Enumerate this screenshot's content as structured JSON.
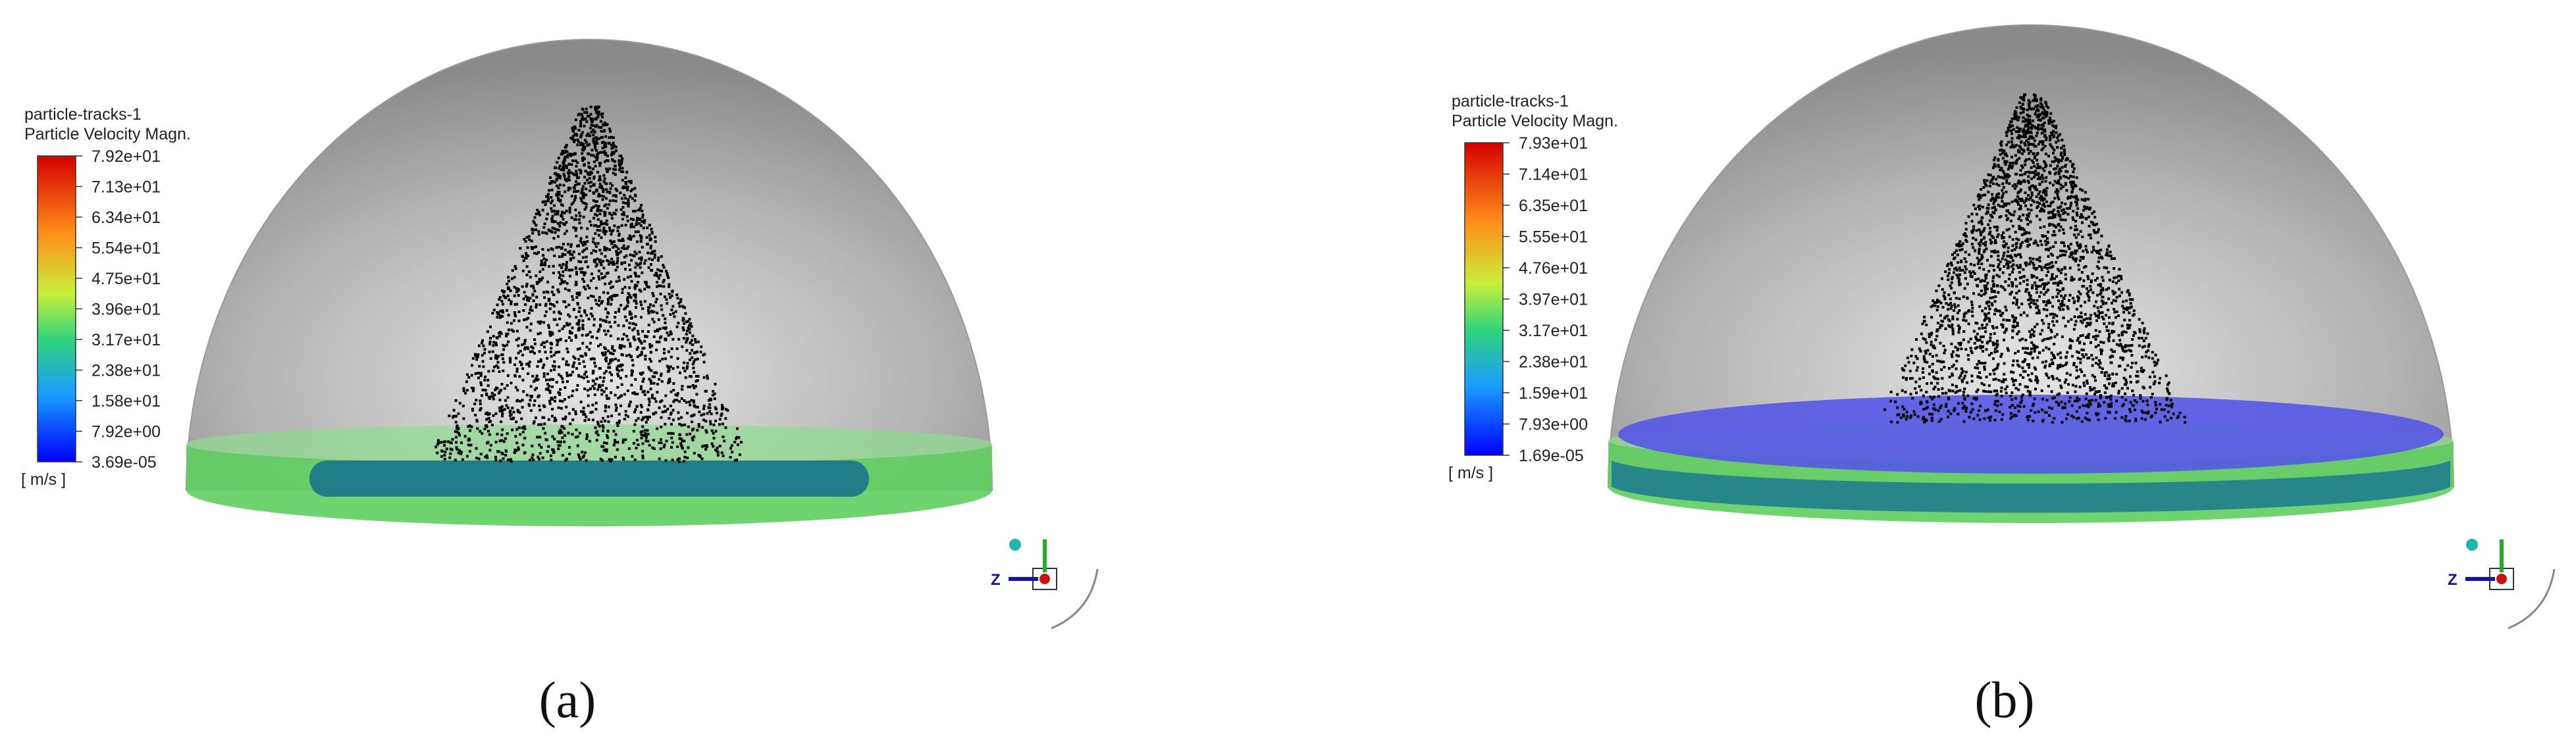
{
  "panels": [
    {
      "legend": {
        "title": "particle-tracks-1",
        "subtitle": "Particle Velocity Magn.",
        "ticks": [
          "7.92e+01",
          "7.13e+01",
          "6.34e+01",
          "5.54e+01",
          "4.75e+01",
          "3.96e+01",
          "3.17e+01",
          "2.38e+01",
          "1.58e+01",
          "7.92e+00",
          "3.69e-05"
        ],
        "unit": "[ m/s ]"
      },
      "triad_label": "Z",
      "caption": "(a)"
    },
    {
      "legend": {
        "title": "particle-tracks-1",
        "subtitle": "Particle Velocity Magn.",
        "ticks": [
          "7.93e+01",
          "7.14e+01",
          "6.35e+01",
          "5.55e+01",
          "4.76e+01",
          "3.97e+01",
          "3.17e+01",
          "2.38e+01",
          "1.59e+01",
          "7.93e+00",
          "1.69e-05"
        ],
        "unit": "[ m/s ]"
      },
      "triad_label": "Z",
      "caption": "(b)"
    }
  ]
}
